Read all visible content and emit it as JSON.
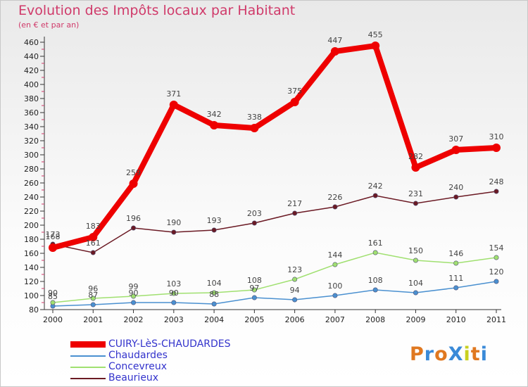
{
  "chart_data": {
    "type": "line",
    "title": "Evolution des Impôts locaux par Habitant",
    "subtitle": "(en € et par an)",
    "xlabel": "",
    "ylabel": "",
    "ylim": [
      80,
      460
    ],
    "yticks": [
      80,
      100,
      120,
      140,
      160,
      180,
      200,
      220,
      240,
      260,
      280,
      300,
      320,
      340,
      360,
      380,
      400,
      420,
      440,
      460
    ],
    "categories": [
      "2000",
      "2001",
      "2002",
      "2003",
      "2004",
      "2005",
      "2006",
      "2007",
      "2008",
      "2009",
      "2010",
      "2011"
    ],
    "series": [
      {
        "name": "CUIRY-LèS-CHAUDARDES",
        "color": "#ee0000",
        "values": [
          168,
          183,
          259,
          371,
          342,
          338,
          375,
          447,
          455,
          282,
          307,
          310
        ]
      },
      {
        "name": "Chaudardes",
        "color": "#4a90d0",
        "values": [
          85,
          87,
          90,
          90,
          88,
          97,
          94,
          100,
          108,
          104,
          111,
          120
        ]
      },
      {
        "name": "Concevreux",
        "color": "#a0e070",
        "values": [
          90,
          96,
          99,
          103,
          104,
          108,
          123,
          144,
          161,
          150,
          146,
          154
        ]
      },
      {
        "name": "Beaurieux",
        "color": "#6b1a24",
        "values": [
          173,
          161,
          196,
          190,
          193,
          203,
          217,
          226,
          242,
          231,
          240,
          248
        ]
      }
    ],
    "legend_position": "bottom-left",
    "grid": false
  },
  "logo": {
    "text": "ProXiti"
  }
}
